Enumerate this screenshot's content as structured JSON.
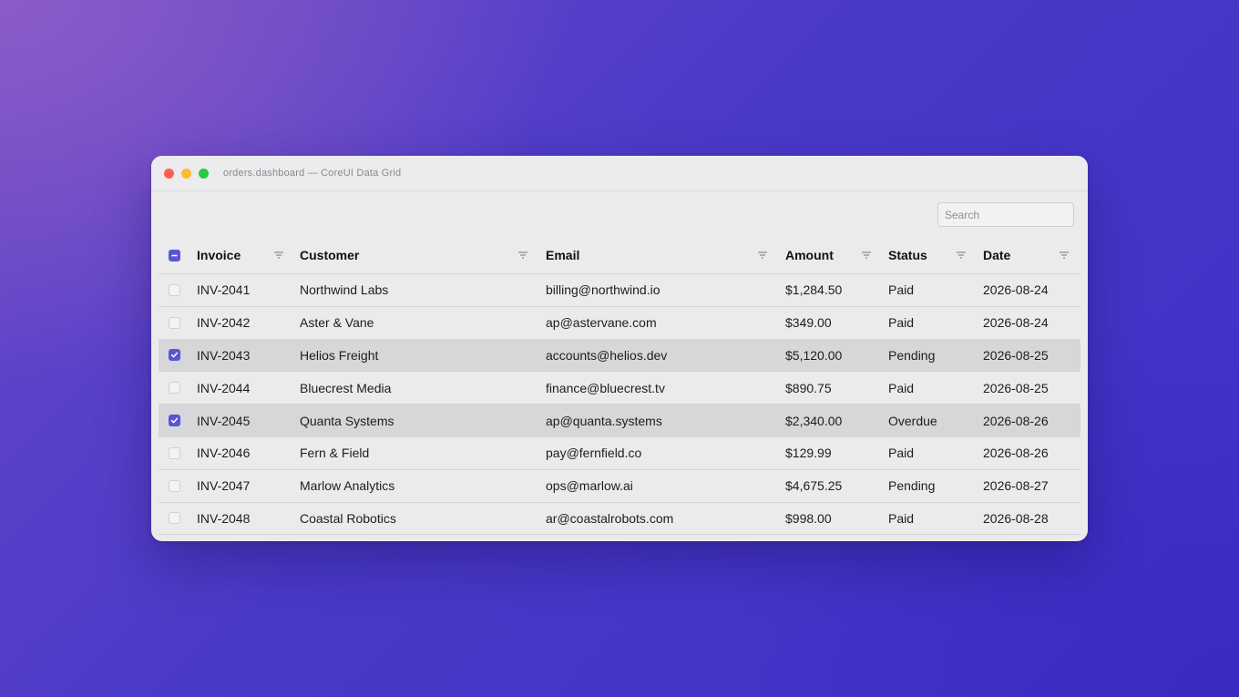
{
  "window": {
    "title": "orders.dashboard — CoreUI Data Grid"
  },
  "search": {
    "placeholder": "Search",
    "value": ""
  },
  "colors": {
    "accent": "#5b55d6",
    "selected_row": "#d7d7d9"
  },
  "table": {
    "select_all_state": "indeterminate",
    "columns": [
      {
        "key": "invoice",
        "label": "Invoice"
      },
      {
        "key": "customer",
        "label": "Customer"
      },
      {
        "key": "email",
        "label": "Email"
      },
      {
        "key": "amount",
        "label": "Amount"
      },
      {
        "key": "status",
        "label": "Status"
      },
      {
        "key": "date",
        "label": "Date"
      }
    ],
    "rows": [
      {
        "checked": false,
        "invoice": "INV-2041",
        "customer": "Northwind Labs",
        "email": "billing@northwind.io",
        "amount": "$1,284.50",
        "status": "Paid",
        "date": "2026-08-24"
      },
      {
        "checked": false,
        "invoice": "INV-2042",
        "customer": "Aster & Vane",
        "email": "ap@astervane.com",
        "amount": "$349.00",
        "status": "Paid",
        "date": "2026-08-24"
      },
      {
        "checked": true,
        "invoice": "INV-2043",
        "customer": "Helios Freight",
        "email": "accounts@helios.dev",
        "amount": "$5,120.00",
        "status": "Pending",
        "date": "2026-08-25"
      },
      {
        "checked": false,
        "invoice": "INV-2044",
        "customer": "Bluecrest Media",
        "email": "finance@bluecrest.tv",
        "amount": "$890.75",
        "status": "Paid",
        "date": "2026-08-25"
      },
      {
        "checked": true,
        "invoice": "INV-2045",
        "customer": "Quanta Systems",
        "email": "ap@quanta.systems",
        "amount": "$2,340.00",
        "status": "Overdue",
        "date": "2026-08-26"
      },
      {
        "checked": false,
        "invoice": "INV-2046",
        "customer": "Fern & Field",
        "email": "pay@fernfield.co",
        "amount": "$129.99",
        "status": "Paid",
        "date": "2026-08-26"
      },
      {
        "checked": false,
        "invoice": "INV-2047",
        "customer": "Marlow Analytics",
        "email": "ops@marlow.ai",
        "amount": "$4,675.25",
        "status": "Pending",
        "date": "2026-08-27"
      },
      {
        "checked": false,
        "invoice": "INV-2048",
        "customer": "Coastal Robotics",
        "email": "ar@coastalrobots.com",
        "amount": "$998.00",
        "status": "Paid",
        "date": "2026-08-28"
      }
    ]
  }
}
